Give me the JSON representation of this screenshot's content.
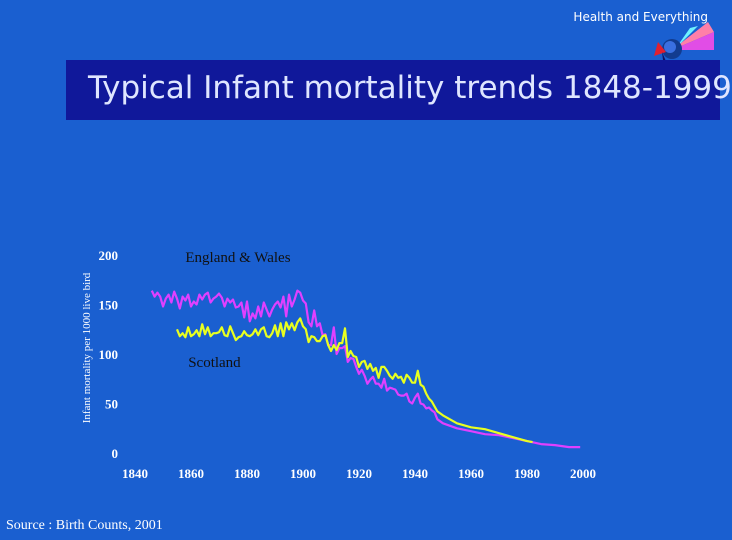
{
  "header": {
    "brand": "Health and Everything",
    "title": "Typical Infant mortality trends 1848-1999"
  },
  "footer": {
    "source": "Source : Birth Counts, 2001"
  },
  "colors": {
    "background": "#1a5fd0",
    "title_bar": "#10189a",
    "england_wales": "#e040ff",
    "scotland": "#e8ff20"
  },
  "chart_data": {
    "type": "line",
    "title": "",
    "xlabel": "",
    "ylabel": "Infant mortality per 1000 live bird",
    "xlim": [
      1840,
      2000
    ],
    "ylim": [
      0,
      200
    ],
    "x_ticks": [
      "1840",
      "1860",
      "1880",
      "1900",
      "1920",
      "1940",
      "1960",
      "1980",
      "2000"
    ],
    "y_ticks": [
      "0",
      "50",
      "100",
      "150",
      "200"
    ],
    "series": [
      {
        "name": "England & Wales",
        "x": [
          1846,
          1847,
          1848,
          1849,
          1850,
          1851,
          1852,
          1853,
          1854,
          1855,
          1856,
          1857,
          1858,
          1859,
          1860,
          1861,
          1862,
          1863,
          1864,
          1865,
          1866,
          1867,
          1868,
          1869,
          1870,
          1871,
          1872,
          1873,
          1874,
          1875,
          1876,
          1877,
          1878,
          1879,
          1880,
          1881,
          1882,
          1883,
          1884,
          1885,
          1886,
          1887,
          1888,
          1889,
          1890,
          1891,
          1892,
          1893,
          1894,
          1895,
          1896,
          1897,
          1898,
          1899,
          1900,
          1901,
          1902,
          1903,
          1904,
          1905,
          1906,
          1907,
          1908,
          1909,
          1910,
          1911,
          1912,
          1913,
          1914,
          1915,
          1916,
          1917,
          1918,
          1919,
          1920,
          1921,
          1922,
          1923,
          1924,
          1925,
          1926,
          1927,
          1928,
          1929,
          1930,
          1931,
          1932,
          1933,
          1934,
          1935,
          1936,
          1937,
          1938,
          1939,
          1940,
          1941,
          1942,
          1943,
          1944,
          1945,
          1946,
          1947,
          1948,
          1950,
          1955,
          1960,
          1965,
          1970,
          1975,
          1980,
          1985,
          1990,
          1995,
          1999
        ],
        "values": [
          164,
          158,
          162,
          158,
          148,
          156,
          160,
          152,
          163,
          156,
          146,
          158,
          154,
          160,
          148,
          153,
          150,
          160,
          155,
          160,
          162,
          152,
          156,
          158,
          161,
          157,
          148,
          156,
          152,
          155,
          147,
          148,
          152,
          137,
          153,
          133,
          141,
          136,
          148,
          138,
          152,
          145,
          138,
          145,
          150,
          153,
          147,
          158,
          138,
          160,
          148,
          155,
          164,
          162,
          154,
          151,
          132,
          128,
          144,
          128,
          131,
          119,
          120,
          109,
          109,
          127,
          100,
          106,
          106,
          108,
          92,
          96,
          95,
          87,
          80,
          84,
          78,
          70,
          74,
          77,
          70,
          70,
          66,
          75,
          63,
          66,
          65,
          64,
          59,
          58,
          58,
          60,
          52,
          50,
          56,
          60,
          50,
          49,
          45,
          46,
          43,
          41,
          34,
          30,
          25,
          22,
          19,
          18,
          15,
          12,
          9,
          8,
          6,
          6
        ]
      },
      {
        "name": "Scotland",
        "x": [
          1855,
          1856,
          1857,
          1858,
          1859,
          1860,
          1861,
          1862,
          1863,
          1864,
          1865,
          1866,
          1867,
          1868,
          1869,
          1870,
          1871,
          1872,
          1873,
          1874,
          1875,
          1876,
          1877,
          1878,
          1879,
          1880,
          1881,
          1882,
          1883,
          1884,
          1885,
          1886,
          1887,
          1888,
          1889,
          1890,
          1891,
          1892,
          1893,
          1894,
          1895,
          1896,
          1897,
          1898,
          1899,
          1900,
          1901,
          1902,
          1903,
          1904,
          1905,
          1906,
          1907,
          1908,
          1909,
          1910,
          1911,
          1912,
          1913,
          1914,
          1915,
          1916,
          1917,
          1918,
          1919,
          1920,
          1921,
          1922,
          1923,
          1924,
          1925,
          1926,
          1927,
          1928,
          1929,
          1930,
          1931,
          1932,
          1933,
          1934,
          1935,
          1936,
          1937,
          1938,
          1939,
          1940,
          1941,
          1942,
          1943,
          1944,
          1945,
          1946,
          1947,
          1948,
          1950,
          1955,
          1960,
          1965,
          1970,
          1975,
          1980,
          1982
        ],
        "values": [
          125,
          118,
          121,
          117,
          127,
          118,
          120,
          124,
          118,
          130,
          120,
          127,
          118,
          121,
          121,
          122,
          127,
          119,
          118,
          128,
          121,
          114,
          117,
          118,
          123,
          119,
          118,
          120,
          125,
          119,
          125,
          127,
          118,
          117,
          121,
          129,
          118,
          131,
          118,
          132,
          125,
          131,
          124,
          132,
          136,
          128,
          125,
          112,
          118,
          117,
          113,
          113,
          118,
          119,
          109,
          103,
          109,
          104,
          111,
          111,
          126,
          97,
          103,
          98,
          97,
          87,
          92,
          93,
          85,
          90,
          83,
          86,
          76,
          87,
          87,
          83,
          78,
          75,
          80,
          76,
          77,
          71,
          79,
          76,
          71,
          71,
          83,
          69,
          67,
          60,
          55,
          52,
          47,
          42,
          38,
          30,
          26,
          24,
          20,
          16,
          12,
          11
        ]
      }
    ],
    "annotations": [
      {
        "text": "England & Wales",
        "x": 1858,
        "y": 193
      },
      {
        "text": "Scotland",
        "x": 1859,
        "y": 87
      }
    ]
  }
}
